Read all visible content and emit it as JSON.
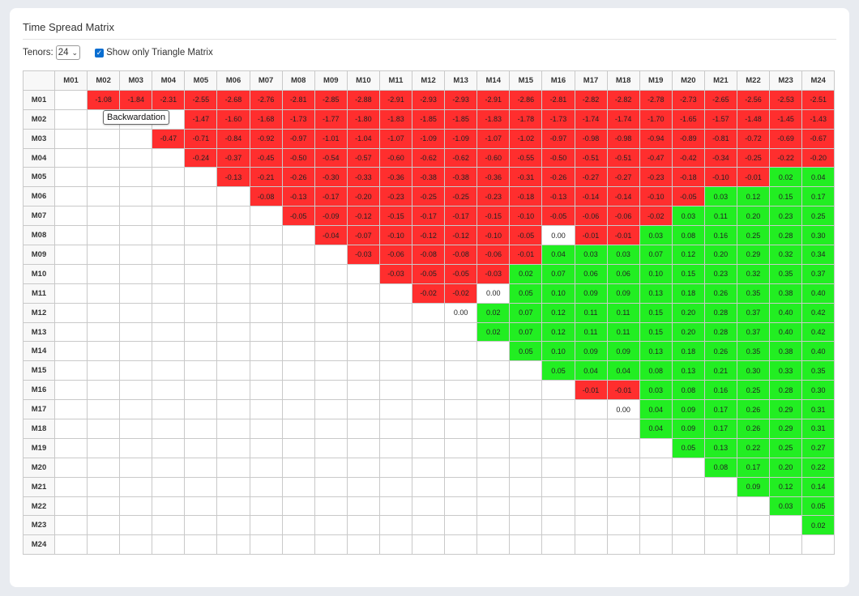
{
  "title": "Time Spread Matrix",
  "controls": {
    "tenors_label": "Tenors:",
    "tenors_value": "24",
    "triangle_label": "Show only Triangle Matrix",
    "triangle_checked": true
  },
  "tooltip": "Backwardation",
  "colors": {
    "negative": "#ff2e2e",
    "positive": "#22ee22",
    "zero": "#ffffff"
  },
  "matrix": {
    "columns": [
      "M01",
      "M02",
      "M03",
      "M04",
      "M05",
      "M06",
      "M07",
      "M08",
      "M09",
      "M10",
      "M11",
      "M12",
      "M13",
      "M14",
      "M15",
      "M16",
      "M17",
      "M18",
      "M19",
      "M20",
      "M21",
      "M22",
      "M23",
      "M24"
    ],
    "rows": [
      {
        "label": "M01",
        "cells": [
          "",
          "-1.08",
          "-1.84",
          "-2.31",
          "-2.55",
          "-2.68",
          "-2.76",
          "-2.81",
          "-2.85",
          "-2.88",
          "-2.91",
          "-2.93",
          "-2.93",
          "-2.91",
          "-2.86",
          "-2.81",
          "-2.82",
          "-2.82",
          "-2.78",
          "-2.73",
          "-2.65",
          "-2.56",
          "-2.53",
          "-2.51"
        ]
      },
      {
        "label": "M02",
        "cells": [
          "",
          "",
          "",
          "",
          "-1.47",
          "-1.60",
          "-1.68",
          "-1.73",
          "-1.77",
          "-1.80",
          "-1.83",
          "-1.85",
          "-1.85",
          "-1.83",
          "-1.78",
          "-1.73",
          "-1.74",
          "-1.74",
          "-1.70",
          "-1.65",
          "-1.57",
          "-1.48",
          "-1.45",
          "-1.43"
        ]
      },
      {
        "label": "M03",
        "cells": [
          "",
          "",
          "",
          "-0.47",
          "-0.71",
          "-0.84",
          "-0.92",
          "-0.97",
          "-1.01",
          "-1.04",
          "-1.07",
          "-1.09",
          "-1.09",
          "-1.07",
          "-1.02",
          "-0.97",
          "-0.98",
          "-0.98",
          "-0.94",
          "-0.89",
          "-0.81",
          "-0.72",
          "-0.69",
          "-0.67"
        ]
      },
      {
        "label": "M04",
        "cells": [
          "",
          "",
          "",
          "",
          "-0.24",
          "-0.37",
          "-0.45",
          "-0.50",
          "-0.54",
          "-0.57",
          "-0.60",
          "-0.62",
          "-0.62",
          "-0.60",
          "-0.55",
          "-0.50",
          "-0.51",
          "-0.51",
          "-0.47",
          "-0.42",
          "-0.34",
          "-0.25",
          "-0.22",
          "-0.20"
        ]
      },
      {
        "label": "M05",
        "cells": [
          "",
          "",
          "",
          "",
          "",
          "-0.13",
          "-0.21",
          "-0.26",
          "-0.30",
          "-0.33",
          "-0.36",
          "-0.38",
          "-0.38",
          "-0.36",
          "-0.31",
          "-0.26",
          "-0.27",
          "-0.27",
          "-0.23",
          "-0.18",
          "-0.10",
          "-0.01",
          "0.02",
          "0.04"
        ]
      },
      {
        "label": "M06",
        "cells": [
          "",
          "",
          "",
          "",
          "",
          "",
          "-0.08",
          "-0.13",
          "-0.17",
          "-0.20",
          "-0.23",
          "-0.25",
          "-0.25",
          "-0.23",
          "-0.18",
          "-0.13",
          "-0.14",
          "-0.14",
          "-0.10",
          "-0.05",
          "0.03",
          "0.12",
          "0.15",
          "0.17"
        ]
      },
      {
        "label": "M07",
        "cells": [
          "",
          "",
          "",
          "",
          "",
          "",
          "",
          "-0.05",
          "-0.09",
          "-0.12",
          "-0.15",
          "-0.17",
          "-0.17",
          "-0.15",
          "-0.10",
          "-0.05",
          "-0.06",
          "-0.06",
          "-0.02",
          "0.03",
          "0.11",
          "0.20",
          "0.23",
          "0.25"
        ]
      },
      {
        "label": "M08",
        "cells": [
          "",
          "",
          "",
          "",
          "",
          "",
          "",
          "",
          "-0.04",
          "-0.07",
          "-0.10",
          "-0.12",
          "-0.12",
          "-0.10",
          "-0.05",
          "0.00",
          "-0.01",
          "-0.01",
          "0.03",
          "0.08",
          "0.16",
          "0.25",
          "0.28",
          "0.30"
        ]
      },
      {
        "label": "M09",
        "cells": [
          "",
          "",
          "",
          "",
          "",
          "",
          "",
          "",
          "",
          "-0.03",
          "-0.06",
          "-0.08",
          "-0.08",
          "-0.06",
          "-0.01",
          "0.04",
          "0.03",
          "0.03",
          "0.07",
          "0.12",
          "0.20",
          "0.29",
          "0.32",
          "0.34"
        ]
      },
      {
        "label": "M10",
        "cells": [
          "",
          "",
          "",
          "",
          "",
          "",
          "",
          "",
          "",
          "",
          "-0.03",
          "-0.05",
          "-0.05",
          "-0.03",
          "0.02",
          "0.07",
          "0.06",
          "0.06",
          "0.10",
          "0.15",
          "0.23",
          "0.32",
          "0.35",
          "0.37"
        ]
      },
      {
        "label": "M11",
        "cells": [
          "",
          "",
          "",
          "",
          "",
          "",
          "",
          "",
          "",
          "",
          "",
          "-0.02",
          "-0.02",
          "0.00",
          "0.05",
          "0.10",
          "0.09",
          "0.09",
          "0.13",
          "0.18",
          "0.26",
          "0.35",
          "0.38",
          "0.40"
        ]
      },
      {
        "label": "M12",
        "cells": [
          "",
          "",
          "",
          "",
          "",
          "",
          "",
          "",
          "",
          "",
          "",
          "",
          "0.00",
          "0.02",
          "0.07",
          "0.12",
          "0.11",
          "0.11",
          "0.15",
          "0.20",
          "0.28",
          "0.37",
          "0.40",
          "0.42"
        ]
      },
      {
        "label": "M13",
        "cells": [
          "",
          "",
          "",
          "",
          "",
          "",
          "",
          "",
          "",
          "",
          "",
          "",
          "",
          "0.02",
          "0.07",
          "0.12",
          "0.11",
          "0.11",
          "0.15",
          "0.20",
          "0.28",
          "0.37",
          "0.40",
          "0.42"
        ]
      },
      {
        "label": "M14",
        "cells": [
          "",
          "",
          "",
          "",
          "",
          "",
          "",
          "",
          "",
          "",
          "",
          "",
          "",
          "",
          "0.05",
          "0.10",
          "0.09",
          "0.09",
          "0.13",
          "0.18",
          "0.26",
          "0.35",
          "0.38",
          "0.40"
        ]
      },
      {
        "label": "M15",
        "cells": [
          "",
          "",
          "",
          "",
          "",
          "",
          "",
          "",
          "",
          "",
          "",
          "",
          "",
          "",
          "",
          "0.05",
          "0.04",
          "0.04",
          "0.08",
          "0.13",
          "0.21",
          "0.30",
          "0.33",
          "0.35"
        ]
      },
      {
        "label": "M16",
        "cells": [
          "",
          "",
          "",
          "",
          "",
          "",
          "",
          "",
          "",
          "",
          "",
          "",
          "",
          "",
          "",
          "",
          "-0.01",
          "-0.01",
          "0.03",
          "0.08",
          "0.16",
          "0.25",
          "0.28",
          "0.30"
        ]
      },
      {
        "label": "M17",
        "cells": [
          "",
          "",
          "",
          "",
          "",
          "",
          "",
          "",
          "",
          "",
          "",
          "",
          "",
          "",
          "",
          "",
          "",
          "0.00",
          "0.04",
          "0.09",
          "0.17",
          "0.26",
          "0.29",
          "0.31"
        ]
      },
      {
        "label": "M18",
        "cells": [
          "",
          "",
          "",
          "",
          "",
          "",
          "",
          "",
          "",
          "",
          "",
          "",
          "",
          "",
          "",
          "",
          "",
          "",
          "0.04",
          "0.09",
          "0.17",
          "0.26",
          "0.29",
          "0.31"
        ]
      },
      {
        "label": "M19",
        "cells": [
          "",
          "",
          "",
          "",
          "",
          "",
          "",
          "",
          "",
          "",
          "",
          "",
          "",
          "",
          "",
          "",
          "",
          "",
          "",
          "0.05",
          "0.13",
          "0.22",
          "0.25",
          "0.27"
        ]
      },
      {
        "label": "M20",
        "cells": [
          "",
          "",
          "",
          "",
          "",
          "",
          "",
          "",
          "",
          "",
          "",
          "",
          "",
          "",
          "",
          "",
          "",
          "",
          "",
          "",
          "0.08",
          "0.17",
          "0.20",
          "0.22"
        ]
      },
      {
        "label": "M21",
        "cells": [
          "",
          "",
          "",
          "",
          "",
          "",
          "",
          "",
          "",
          "",
          "",
          "",
          "",
          "",
          "",
          "",
          "",
          "",
          "",
          "",
          "",
          "0.09",
          "0.12",
          "0.14"
        ]
      },
      {
        "label": "M22",
        "cells": [
          "",
          "",
          "",
          "",
          "",
          "",
          "",
          "",
          "",
          "",
          "",
          "",
          "",
          "",
          "",
          "",
          "",
          "",
          "",
          "",
          "",
          "",
          "0.03",
          "0.05"
        ]
      },
      {
        "label": "M23",
        "cells": [
          "",
          "",
          "",
          "",
          "",
          "",
          "",
          "",
          "",
          "",
          "",
          "",
          "",
          "",
          "",
          "",
          "",
          "",
          "",
          "",
          "",
          "",
          "",
          "0.02"
        ]
      },
      {
        "label": "M24",
        "cells": [
          "",
          "",
          "",
          "",
          "",
          "",
          "",
          "",
          "",
          "",
          "",
          "",
          "",
          "",
          "",
          "",
          "",
          "",
          "",
          "",
          "",
          "",
          "",
          ""
        ]
      }
    ]
  }
}
